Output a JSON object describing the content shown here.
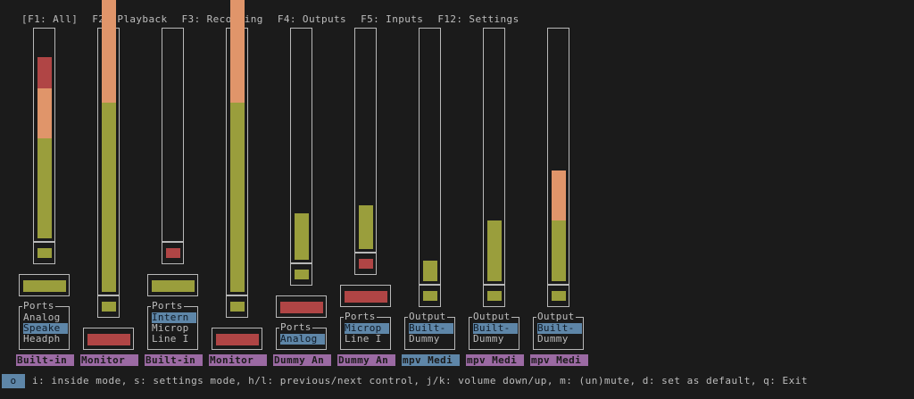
{
  "tabs": [
    "[F1: All]",
    "F2: Playback",
    "F3: Recording",
    "F4: Outputs",
    "F5: Inputs",
    "F12: Settings"
  ],
  "colors": {
    "green": "#9a9e3c",
    "orange": "#e0956a",
    "red": "#b04545",
    "label_bg": "#9b6aa3",
    "label_selected_bg": "#5e86a8"
  },
  "strips": [
    {
      "label": "Built-in",
      "volume_levels": [
        0.48,
        0.24,
        0.15
      ],
      "peak_color": "green",
      "toggle_color": "green",
      "ports": {
        "title": "Ports",
        "items": [
          "Analog",
          "Speake",
          "Headph"
        ],
        "selected": 1
      }
    },
    {
      "label": "Monitor",
      "volume_levels": [
        0.72,
        0.6,
        0.14
      ],
      "peak_color": "green",
      "toggle_color": "red"
    },
    {
      "label": "Built-in",
      "volume_levels": [
        0,
        0,
        0
      ],
      "peak_color": "red",
      "toggle_color": "green",
      "ports": {
        "title": "Ports",
        "items": [
          "Intern",
          "Microp",
          "Line I"
        ],
        "selected": 0
      }
    },
    {
      "label": "Monitor",
      "volume_levels": [
        0.72,
        0.6,
        0.14
      ],
      "peak_color": "green",
      "toggle_color": "red"
    },
    {
      "label": "Dummy An",
      "volume_levels": [
        0.2,
        0,
        0
      ],
      "peak_color": "green",
      "toggle_color": "red",
      "ports": {
        "title": "Ports",
        "items": [
          "Analog"
        ],
        "selected": 0
      }
    },
    {
      "label": "Dummy An",
      "volume_levels": [
        0.2,
        0,
        0
      ],
      "peak_color": "red",
      "toggle_color": "red",
      "ports": {
        "title": "Ports",
        "items": [
          "Microp",
          "Line I"
        ],
        "selected": 0
      }
    },
    {
      "label": "mpv Medi",
      "selected": true,
      "volume_levels": [
        0.08,
        0,
        0
      ],
      "peak_color": "green",
      "ports": {
        "title": "Output",
        "items": [
          "Built-",
          "Dummy"
        ],
        "selected": 0
      }
    },
    {
      "label": "mpv Medi",
      "volume_levels": [
        0.24,
        0,
        0
      ],
      "peak_color": "green",
      "ports": {
        "title": "Output",
        "items": [
          "Built-",
          "Dummy"
        ],
        "selected": 0
      }
    },
    {
      "label": "mpv Medi",
      "volume_levels": [
        0.24,
        0.2,
        0
      ],
      "peak_color": "green",
      "ports": {
        "title": "Output",
        "items": [
          "Built-",
          "Dummy"
        ],
        "selected": 0
      }
    }
  ],
  "footer": {
    "mode": "o",
    "help": "i: inside mode, s: settings mode, h/l: previous/next control, j/k: volume down/up, m: (un)mute, d: set as default, q: Exit"
  }
}
